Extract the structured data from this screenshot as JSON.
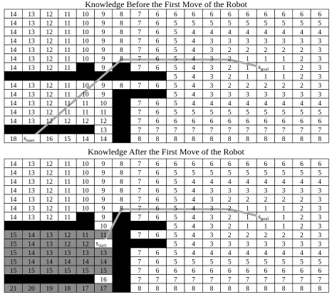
{
  "panels": [
    {
      "title": "Knowledge Before the First Move of the Robot",
      "grid": [
        [
          14,
          13,
          12,
          11,
          10,
          9,
          8,
          7,
          6,
          6,
          6,
          6,
          6,
          6,
          6,
          6,
          6,
          6
        ],
        [
          14,
          13,
          12,
          11,
          10,
          9,
          8,
          7,
          6,
          5,
          5,
          5,
          5,
          5,
          5,
          5,
          5,
          5
        ],
        [
          14,
          13,
          12,
          11,
          10,
          9,
          8,
          7,
          6,
          5,
          4,
          4,
          4,
          4,
          4,
          4,
          4,
          4
        ],
        [
          14,
          13,
          12,
          11,
          10,
          9,
          8,
          7,
          6,
          5,
          4,
          3,
          3,
          3,
          3,
          3,
          3,
          3
        ],
        [
          14,
          13,
          12,
          11,
          10,
          9,
          8,
          7,
          6,
          5,
          4,
          3,
          2,
          2,
          2,
          2,
          2,
          3
        ],
        [
          14,
          13,
          12,
          11,
          10,
          9,
          8,
          7,
          6,
          5,
          4,
          3,
          2,
          1,
          1,
          1,
          2,
          3
        ],
        [
          14,
          13,
          12,
          11,
          "",
          9,
          "",
          7,
          6,
          5,
          4,
          3,
          2,
          1,
          "",
          1,
          2,
          3
        ],
        [
          "",
          "",
          "",
          "",
          "",
          "",
          "",
          "",
          "",
          5,
          4,
          3,
          2,
          1,
          1,
          1,
          2,
          3
        ],
        [
          14,
          13,
          12,
          11,
          10,
          9,
          8,
          7,
          6,
          5,
          4,
          3,
          2,
          2,
          2,
          2,
          2,
          3
        ],
        [
          14,
          13,
          12,
          11,
          10,
          9,
          "",
          "",
          "",
          5,
          4,
          3,
          3,
          3,
          3,
          3,
          3,
          3
        ],
        [
          14,
          13,
          12,
          11,
          11,
          10,
          "",
          7,
          6,
          5,
          4,
          4,
          4,
          4,
          4,
          4,
          4,
          4
        ],
        [
          14,
          13,
          12,
          11,
          11,
          11,
          "",
          7,
          6,
          5,
          5,
          5,
          5,
          5,
          5,
          5,
          5,
          5
        ],
        [
          14,
          13,
          12,
          12,
          12,
          12,
          "",
          7,
          6,
          6,
          6,
          6,
          6,
          6,
          6,
          6,
          6,
          6
        ],
        [
          "",
          "",
          "",
          "",
          "",
          "13",
          "",
          7,
          7,
          7,
          7,
          7,
          7,
          7,
          7,
          7,
          7,
          7
        ],
        [
          18,
          "",
          16,
          15,
          14,
          14,
          "",
          8,
          8,
          8,
          8,
          8,
          8,
          8,
          8,
          8,
          8,
          8
        ]
      ],
      "black": [
        [
          6,
          4
        ],
        [
          6,
          6
        ],
        [
          7,
          0
        ],
        [
          7,
          1
        ],
        [
          7,
          2
        ],
        [
          7,
          3
        ],
        [
          7,
          4
        ],
        [
          7,
          5
        ],
        [
          7,
          6
        ],
        [
          7,
          7
        ],
        [
          7,
          8
        ],
        [
          9,
          6
        ],
        [
          9,
          7
        ],
        [
          9,
          8
        ],
        [
          10,
          6
        ],
        [
          11,
          6
        ],
        [
          12,
          6
        ],
        [
          13,
          0
        ],
        [
          13,
          1
        ],
        [
          13,
          2
        ],
        [
          13,
          3
        ],
        [
          13,
          4
        ],
        [
          13,
          6
        ],
        [
          14,
          6
        ]
      ],
      "grey": [],
      "start": {
        "cell": [
          14,
          1
        ],
        "label": "s",
        "sub": "start"
      },
      "goal": {
        "cell": [
          6,
          14
        ],
        "label": "s",
        "sub": "goal"
      }
    },
    {
      "title": "Knowledge After the First Move of the Robot",
      "grid": [
        [
          14,
          13,
          12,
          11,
          10,
          9,
          8,
          7,
          6,
          6,
          6,
          6,
          6,
          6,
          6,
          6,
          6,
          6
        ],
        [
          14,
          13,
          12,
          11,
          10,
          9,
          8,
          7,
          6,
          5,
          5,
          5,
          5,
          5,
          5,
          5,
          5,
          5
        ],
        [
          14,
          13,
          12,
          11,
          10,
          9,
          8,
          7,
          6,
          5,
          4,
          4,
          4,
          4,
          4,
          4,
          4,
          4
        ],
        [
          14,
          13,
          12,
          11,
          10,
          9,
          8,
          7,
          6,
          5,
          4,
          3,
          3,
          3,
          3,
          3,
          3,
          3
        ],
        [
          14,
          13,
          12,
          11,
          10,
          9,
          8,
          7,
          6,
          5,
          4,
          3,
          2,
          2,
          2,
          2,
          2,
          3
        ],
        [
          14,
          13,
          12,
          11,
          10,
          9,
          8,
          7,
          6,
          5,
          4,
          3,
          2,
          1,
          1,
          1,
          2,
          3
        ],
        [
          14,
          13,
          12,
          11,
          "",
          9,
          "",
          7,
          6,
          5,
          4,
          3,
          2,
          1,
          "",
          1,
          2,
          3
        ],
        [
          "",
          "",
          "",
          "",
          "",
          "10",
          "",
          "",
          "",
          5,
          4,
          3,
          2,
          1,
          1,
          1,
          2,
          3
        ],
        [
          15,
          14,
          13,
          12,
          11,
          11,
          "",
          7,
          6,
          5,
          4,
          3,
          2,
          2,
          2,
          2,
          2,
          3
        ],
        [
          15,
          14,
          13,
          12,
          12,
          "",
          "",
          "",
          "",
          5,
          4,
          3,
          3,
          3,
          3,
          3,
          3,
          3
        ],
        [
          15,
          14,
          13,
          13,
          13,
          13,
          "",
          7,
          6,
          5,
          4,
          4,
          4,
          4,
          4,
          4,
          4,
          4
        ],
        [
          15,
          14,
          14,
          14,
          14,
          14,
          "",
          7,
          6,
          5,
          5,
          5,
          5,
          5,
          5,
          5,
          5,
          5
        ],
        [
          15,
          15,
          15,
          15,
          15,
          15,
          "",
          7,
          6,
          6,
          6,
          6,
          6,
          6,
          6,
          6,
          6,
          6
        ],
        [
          "",
          "",
          "",
          "",
          "",
          "16",
          "",
          7,
          7,
          7,
          7,
          7,
          7,
          7,
          7,
          7,
          7,
          7
        ],
        [
          21,
          20,
          19,
          18,
          17,
          17,
          "",
          8,
          8,
          8,
          8,
          8,
          8,
          8,
          8,
          8,
          8,
          8
        ]
      ],
      "black": [
        [
          6,
          4
        ],
        [
          6,
          6
        ],
        [
          7,
          0
        ],
        [
          7,
          1
        ],
        [
          7,
          2
        ],
        [
          7,
          3
        ],
        [
          7,
          4
        ],
        [
          7,
          6
        ],
        [
          7,
          7
        ],
        [
          7,
          8
        ],
        [
          8,
          6
        ],
        [
          9,
          6
        ],
        [
          9,
          7
        ],
        [
          9,
          8
        ],
        [
          10,
          6
        ],
        [
          11,
          6
        ],
        [
          12,
          6
        ],
        [
          13,
          0
        ],
        [
          13,
          1
        ],
        [
          13,
          2
        ],
        [
          13,
          3
        ],
        [
          13,
          4
        ],
        [
          13,
          6
        ],
        [
          14,
          6
        ]
      ],
      "grey": [
        [
          8,
          0
        ],
        [
          8,
          1
        ],
        [
          8,
          2
        ],
        [
          8,
          3
        ],
        [
          8,
          4
        ],
        [
          8,
          5
        ],
        [
          9,
          0
        ],
        [
          9,
          1
        ],
        [
          9,
          2
        ],
        [
          9,
          3
        ],
        [
          9,
          4
        ],
        [
          10,
          0
        ],
        [
          10,
          1
        ],
        [
          10,
          2
        ],
        [
          10,
          3
        ],
        [
          10,
          4
        ],
        [
          10,
          5
        ],
        [
          11,
          0
        ],
        [
          11,
          1
        ],
        [
          11,
          2
        ],
        [
          11,
          3
        ],
        [
          11,
          4
        ],
        [
          11,
          5
        ],
        [
          12,
          0
        ],
        [
          12,
          1
        ],
        [
          12,
          2
        ],
        [
          12,
          3
        ],
        [
          12,
          4
        ],
        [
          12,
          5
        ],
        [
          14,
          0
        ],
        [
          14,
          1
        ],
        [
          14,
          2
        ],
        [
          14,
          3
        ],
        [
          14,
          4
        ],
        [
          14,
          5
        ]
      ],
      "start": {
        "cell": [
          9,
          5
        ],
        "label": "s",
        "sub": "start"
      },
      "goal": {
        "cell": [
          6,
          14
        ],
        "label": "s",
        "sub": "goal"
      }
    }
  ],
  "colors": {
    "black": "#000000",
    "grey": "#8c8c8c",
    "grid_line": "#000000",
    "path": "#a8a8a8"
  }
}
